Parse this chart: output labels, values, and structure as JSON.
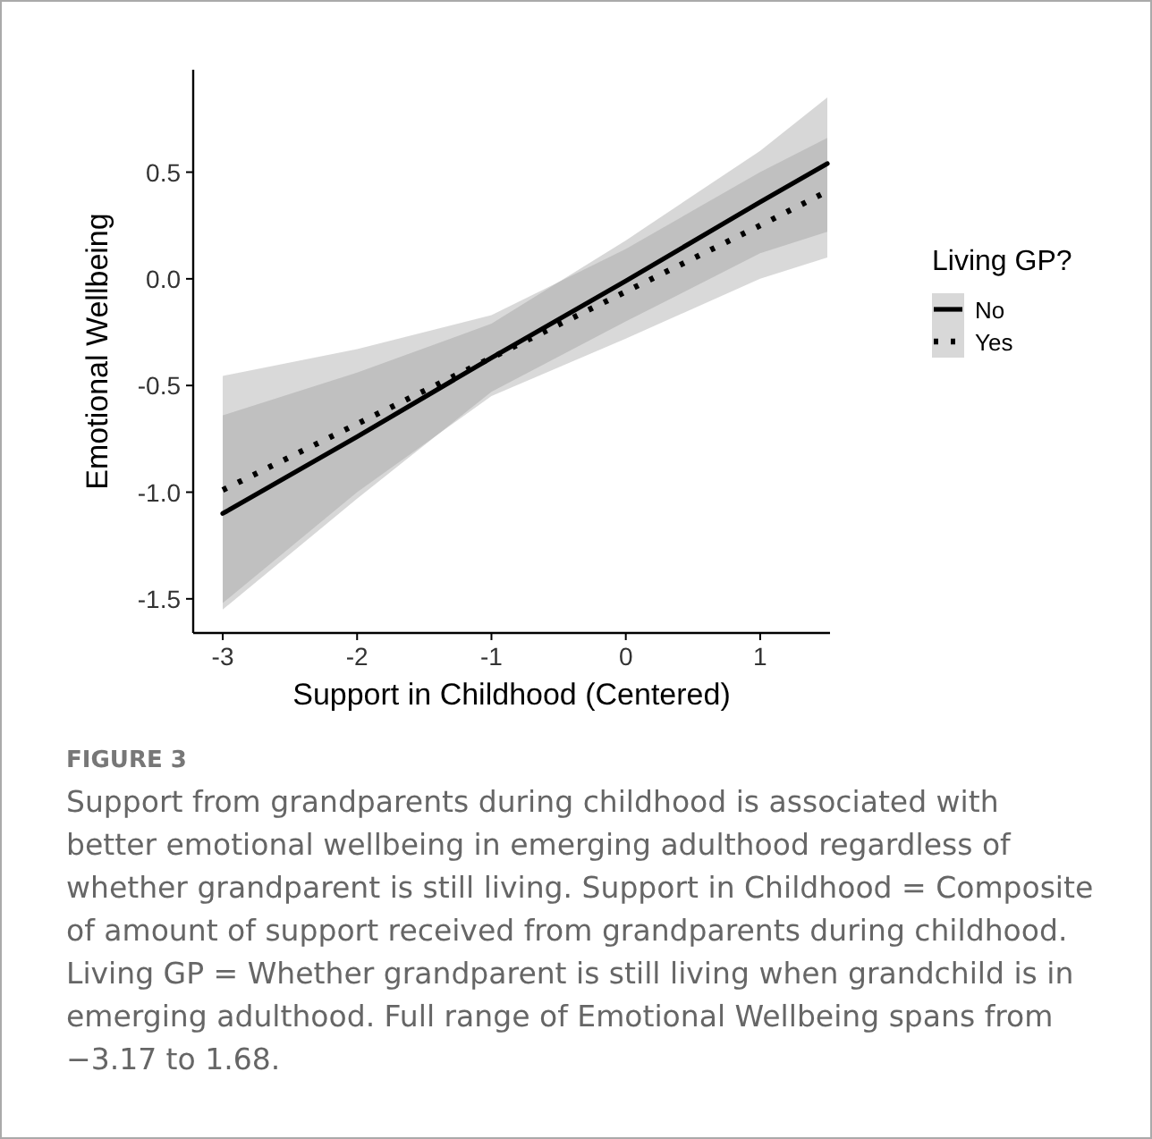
{
  "chart_data": {
    "type": "line",
    "xlabel": "Support in Childhood (Centered)",
    "ylabel": "Emotional Wellbeing",
    "legend_title": "Living GP?",
    "legend": "right",
    "grid": false,
    "xlim": [
      -3.22,
      1.52
    ],
    "ylim": [
      -1.66,
      0.98
    ],
    "xticks": [
      -3,
      -2,
      -1,
      0,
      1
    ],
    "yticks": [
      {
        "value": -1.5,
        "label": "-1.5"
      },
      {
        "value": -1,
        "label": "-1.0"
      },
      {
        "value": -0.5,
        "label": "-0.5"
      },
      {
        "value": 0,
        "label": "0.0"
      },
      {
        "value": 0.5,
        "label": "0.5"
      }
    ],
    "x": [
      -3,
      -2,
      -1,
      0,
      1,
      1.5
    ],
    "series": [
      {
        "name": "No",
        "color": "#000000",
        "line_style": "solid",
        "values": [
          -1.1,
          -0.74,
          -0.37,
          -0.01,
          0.36,
          0.54
        ],
        "lower": [
          -1.55,
          -1.03,
          -0.53,
          -0.2,
          0.12,
          0.22
        ],
        "upper": [
          -0.64,
          -0.44,
          -0.21,
          0.18,
          0.6,
          0.85
        ]
      },
      {
        "name": "Yes",
        "color": "#000000",
        "line_style": "dotted",
        "values": [
          -0.99,
          -0.68,
          -0.37,
          -0.06,
          0.25,
          0.41
        ],
        "lower": [
          -1.52,
          -1.0,
          -0.55,
          -0.28,
          0.0,
          0.1
        ],
        "upper": [
          -0.455,
          -0.33,
          -0.17,
          0.14,
          0.5,
          0.66
        ]
      }
    ],
    "annotations": [
      "FIGURE 3",
      "Support from grandparents during childhood is associated with better emotional wellbeing in emerging adulthood regardless of whether grandparent is still living. Support in Childhood = Composite of amount of support received from grandparents during childhood. Living GP = Whether grandparent is still living when grandchild is in emerging adulthood. Full range of Emotional Wellbeing spans from −3.17 to 1.68."
    ]
  }
}
